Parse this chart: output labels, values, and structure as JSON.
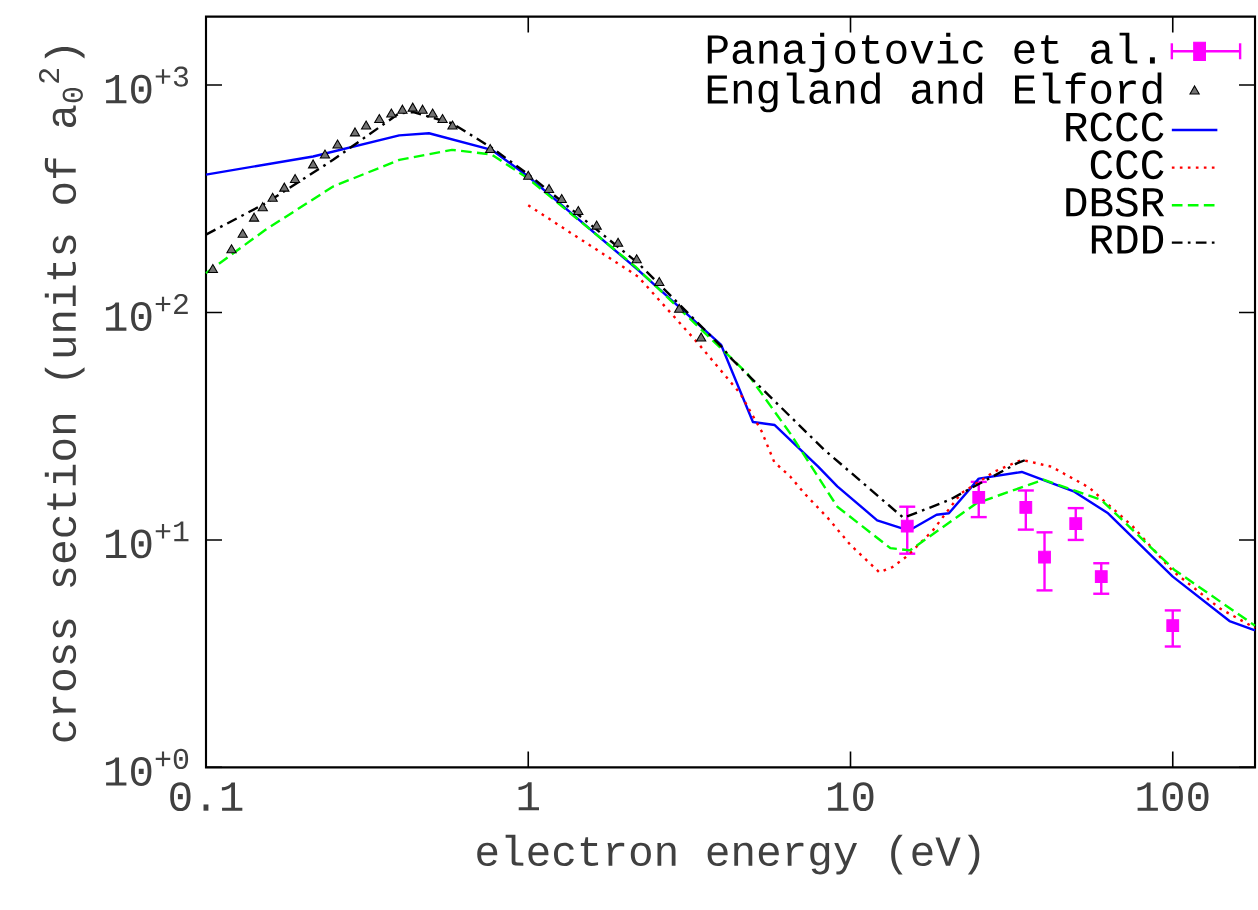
{
  "chart_data": {
    "type": "line",
    "xlabel": "electron energy (eV)",
    "ylabel": "cross section (units of a$_{0}$$^{2}$)",
    "log": "xy",
    "legend": "top right",
    "xlim": [
      0.1,
      180
    ],
    "xticks": [
      0.1,
      1,
      10,
      100
    ],
    "ylim": [
      1,
      2000
    ],
    "yticks": [
      {
        "value": 1,
        "label": "10$^{+0}$"
      },
      {
        "value": 10,
        "label": "10$^{+1}$"
      },
      {
        "value": 100,
        "label": "10$^{+2}$"
      },
      {
        "value": 1000,
        "label": "10$^{+3}$"
      }
    ],
    "series": [
      {
        "name": "Panajotovic et al.",
        "type": "scatter",
        "marker": "square",
        "color": "#ff00ff",
        "x": [
          15,
          25,
          35,
          40,
          50,
          60,
          100
        ],
        "values": [
          11.5,
          15.4,
          13.9,
          8.4,
          11.8,
          6.9,
          4.2
        ],
        "errors": [
          [
            8.7,
            14.0
          ],
          [
            12.6,
            18.0
          ],
          [
            11.1,
            16.5
          ],
          [
            6.0,
            10.8
          ],
          [
            10.0,
            13.8
          ],
          [
            5.8,
            7.9
          ],
          [
            3.4,
            4.9
          ]
        ]
      },
      {
        "name": "England and Elford",
        "type": "scatter",
        "marker": "triangle",
        "color": "#000000",
        "x": [
          0.105,
          0.12,
          0.13,
          0.141,
          0.15,
          0.161,
          0.175,
          0.189,
          0.215,
          0.234,
          0.256,
          0.29,
          0.314,
          0.345,
          0.376,
          0.407,
          0.438,
          0.47,
          0.505,
          0.542,
          0.582,
          0.762,
          1.0,
          1.16,
          1.27,
          1.43,
          1.63,
          1.9,
          2.17,
          2.55,
          2.94,
          3.44
        ],
        "values": [
          154,
          188,
          220,
          259,
          288,
          317,
          351,
          383,
          444,
          491,
          543,
          614,
          658,
          703,
          743,
          773,
          789,
          773,
          743,
          703,
          658,
          519,
          396,
          346,
          313,
          277,
          239,
          201,
          170,
          135,
          103,
          77
        ]
      },
      {
        "name": "RCCC",
        "line_style": "solid",
        "color": "#0000ff",
        "x": [
          0.1,
          0.215,
          0.398,
          0.492,
          0.77,
          1.0,
          2.19,
          3.97,
          4.98,
          5.82,
          7.94,
          9.1,
          12.1,
          15.2,
          18.5,
          20.2,
          25,
          34,
          49.5,
          63,
          100,
          150,
          180
        ],
        "values": [
          404,
          485,
          601,
          614,
          519,
          396,
          154,
          72,
          33,
          32,
          21,
          17.2,
          12.2,
          11.0,
          12.9,
          13.1,
          18.6,
          19.9,
          16.3,
          13.1,
          6.9,
          4.4,
          4.0
        ]
      },
      {
        "name": "CCC",
        "line_style": "dotted",
        "color": "#ff0000",
        "x": [
          1.0,
          2.19,
          3.37,
          4.55,
          5.3,
          5.8,
          6.5,
          7.2,
          8.5,
          10,
          12.3,
          13.5,
          15,
          18,
          22,
          28,
          34,
          42,
          55,
          75,
          100,
          140,
          180
        ],
        "values": [
          296,
          144,
          73,
          44,
          30,
          22,
          19,
          16,
          12.5,
          9.5,
          7.2,
          7.6,
          8.5,
          11,
          16,
          20,
          22.5,
          21,
          17,
          11.5,
          7.3,
          5.0,
          4.1
        ]
      },
      {
        "name": "DBSR",
        "line_style": "dashed",
        "color": "#00ff00",
        "x": [
          0.1,
          0.153,
          0.248,
          0.398,
          0.58,
          0.77,
          1.0,
          2.15,
          4.78,
          6.5,
          9.1,
          13.3,
          15.3,
          24.6,
          39.7,
          60,
          101,
          180
        ],
        "values": [
          149,
          231,
          358,
          469,
          519,
          495,
          388,
          159,
          54,
          29.4,
          14.0,
          9.2,
          9.0,
          14.5,
          18.4,
          15,
          7.4,
          4.2
        ]
      },
      {
        "name": "RDD",
        "line_style": "dashdot",
        "color": "#000000",
        "x": [
          0.1,
          0.153,
          0.248,
          0.398,
          0.44,
          0.58,
          0.77,
          1.0,
          2.19,
          3.97,
          4.3,
          8.27,
          14.6,
          20.3,
          32.8,
          35
        ],
        "values": [
          220,
          302,
          469,
          752,
          760,
          679,
          530,
          405,
          165,
          71,
          62,
          25,
          12.5,
          15,
          21.7,
          22.5
        ]
      }
    ]
  }
}
